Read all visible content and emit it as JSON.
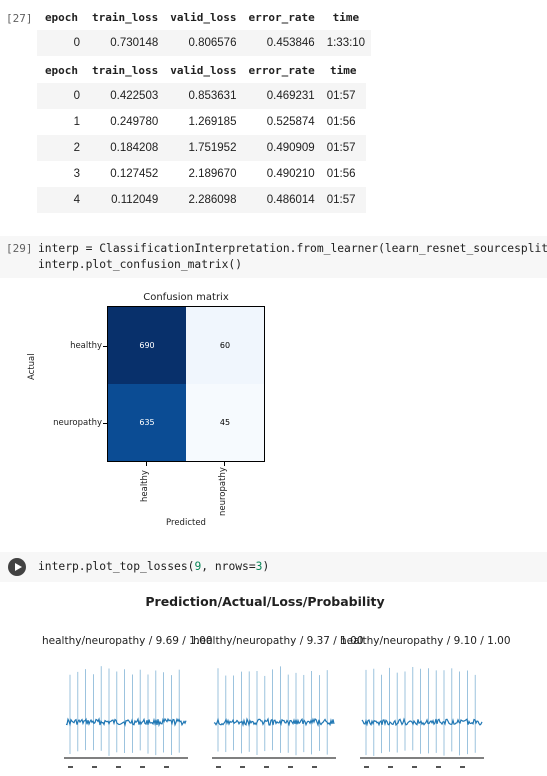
{
  "cell27": {
    "prompt": "[27]",
    "table1": {
      "columns": [
        "epoch",
        "train_loss",
        "valid_loss",
        "error_rate",
        "time"
      ],
      "rows": [
        [
          "0",
          "0.730148",
          "0.806576",
          "0.453846",
          "1:33:10"
        ]
      ]
    },
    "table2": {
      "columns": [
        "epoch",
        "train_loss",
        "valid_loss",
        "error_rate",
        "time"
      ],
      "rows": [
        [
          "0",
          "0.422503",
          "0.853631",
          "0.469231",
          "01:57"
        ],
        [
          "1",
          "0.249780",
          "1.269185",
          "0.525874",
          "01:56"
        ],
        [
          "2",
          "0.184208",
          "1.751952",
          "0.490909",
          "01:57"
        ],
        [
          "3",
          "0.127452",
          "2.189670",
          "0.490210",
          "01:56"
        ],
        [
          "4",
          "0.112049",
          "2.286098",
          "0.486014",
          "01:57"
        ]
      ]
    }
  },
  "cell29": {
    "prompt": "[29]",
    "code_line1": "interp = ClassificationInterpretation.from_learner(learn_resnet_sourcesplit_5)",
    "code_line2": "interp.plot_confusion_matrix()"
  },
  "confusion_matrix": {
    "title": "Confusion matrix",
    "ylabel": "Actual",
    "xlabel": "Predicted",
    "row_labels": [
      "healthy",
      "neuropathy"
    ],
    "col_labels": [
      "healthy",
      "neuropathy"
    ],
    "cell_values": [
      "690",
      "60",
      "635",
      "45"
    ],
    "cell_colors": [
      "#08306b",
      "#f0f6fd",
      "#0b4c94",
      "#f6fafe"
    ]
  },
  "cell_next": {
    "code_fn": "interp.plot_top_losses(",
    "code_num": "9",
    "code_rest": ", nrows=",
    "code_num2": "3",
    "code_close": ")",
    "suptitle": "Prediction/Actual/Loss/Probability",
    "subplot_titles": [
      "healthy/neuropathy / 9.69 / 1.00",
      "healthy/neuropathy / 9.37 / 1.00",
      "healthy/neuropathy / 9.10 / 1.00"
    ]
  },
  "chart_data": {
    "type": "heatmap",
    "title": "Confusion matrix",
    "xlabel": "Predicted",
    "ylabel": "Actual",
    "x_categories": [
      "healthy",
      "neuropathy"
    ],
    "y_categories": [
      "healthy",
      "neuropathy"
    ],
    "values": [
      [
        690,
        60
      ],
      [
        635,
        45
      ]
    ]
  },
  "colors": {
    "signal": "#1f77b4",
    "cm_dark": "#08306b"
  }
}
